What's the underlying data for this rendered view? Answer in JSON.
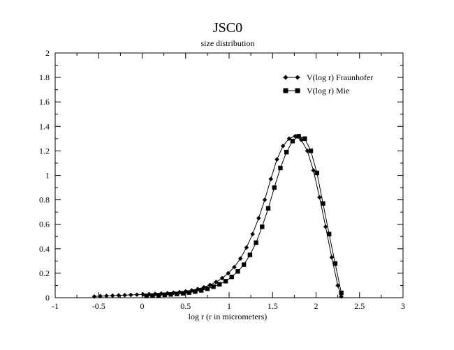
{
  "chart_data": {
    "type": "line",
    "title": "JSC0",
    "subtitle": "size distribution",
    "xlabel": "log r (r in micrometers)",
    "ylabel": "",
    "xlim": [
      -1,
      3
    ],
    "ylim": [
      0,
      2
    ],
    "x_ticks": [
      "-1",
      "-0.5",
      "0",
      "0.5",
      "1",
      "1.5",
      "2",
      "2.5",
      "3"
    ],
    "y_ticks": [
      "0",
      "0.2",
      "0.4",
      "0.6",
      "0.8",
      "1",
      "1.2",
      "1.4",
      "1.6",
      "1.8",
      "2"
    ],
    "grid": false,
    "legend_position": "top-right",
    "series": [
      {
        "name": "V(log r) Fraunhofer",
        "marker": "diamond",
        "color": "#000000",
        "x": [
          -0.55,
          -0.48,
          -0.41,
          -0.34,
          -0.27,
          -0.2,
          -0.13,
          -0.06,
          0.01,
          0.08,
          0.15,
          0.22,
          0.29,
          0.36,
          0.43,
          0.5,
          0.57,
          0.64,
          0.71,
          0.78,
          0.85,
          0.92,
          0.99,
          1.06,
          1.13,
          1.2,
          1.27,
          1.34,
          1.41,
          1.48,
          1.55,
          1.62,
          1.69,
          1.76,
          1.83,
          1.9,
          1.97,
          2.04,
          2.11,
          2.18,
          2.25,
          2.29
        ],
        "y": [
          0.01,
          0.013,
          0.015,
          0.017,
          0.019,
          0.021,
          0.023,
          0.025,
          0.027,
          0.029,
          0.031,
          0.034,
          0.037,
          0.041,
          0.046,
          0.052,
          0.06,
          0.071,
          0.085,
          0.104,
          0.128,
          0.16,
          0.2,
          0.25,
          0.32,
          0.41,
          0.52,
          0.65,
          0.8,
          0.97,
          1.13,
          1.24,
          1.3,
          1.32,
          1.29,
          1.2,
          1.04,
          0.82,
          0.58,
          0.33,
          0.1,
          0.01
        ]
      },
      {
        "name": "V(log r) Mie",
        "marker": "square",
        "color": "#000000",
        "x": [
          0.05,
          0.12,
          0.19,
          0.26,
          0.33,
          0.4,
          0.47,
          0.54,
          0.61,
          0.68,
          0.75,
          0.82,
          0.89,
          0.96,
          1.03,
          1.1,
          1.17,
          1.24,
          1.31,
          1.38,
          1.45,
          1.52,
          1.59,
          1.66,
          1.73,
          1.8,
          1.87,
          1.94,
          2.01,
          2.08,
          2.15,
          2.22,
          2.29
        ],
        "y": [
          0.015,
          0.018,
          0.021,
          0.024,
          0.027,
          0.031,
          0.036,
          0.042,
          0.05,
          0.06,
          0.073,
          0.09,
          0.11,
          0.135,
          0.17,
          0.215,
          0.27,
          0.35,
          0.45,
          0.58,
          0.73,
          0.9,
          1.06,
          1.19,
          1.28,
          1.32,
          1.3,
          1.2,
          1.02,
          0.77,
          0.52,
          0.28,
          0.04
        ]
      }
    ]
  }
}
